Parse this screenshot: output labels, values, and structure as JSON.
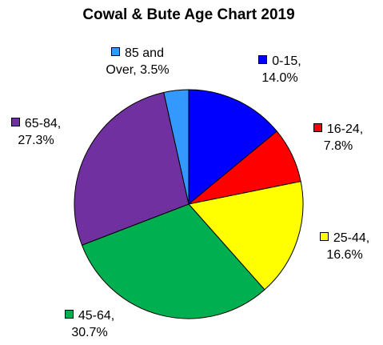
{
  "chart_data": {
    "type": "pie",
    "title": "Cowal & Bute Age Chart 2019",
    "values": [
      14.0,
      7.8,
      16.6,
      30.7,
      27.3,
      3.5
    ],
    "value_labels": [
      "0-15, 14.0%",
      "16-24, 7.8%",
      "25-44, 16.6%",
      "45-64, 30.7%",
      "65-84, 27.3%",
      "85 and Over, 3.5%"
    ],
    "colors": [
      "#0000ff",
      "#ff0000",
      "#ffff00",
      "#00b050",
      "#7030a0",
      "#3399ff"
    ]
  }
}
